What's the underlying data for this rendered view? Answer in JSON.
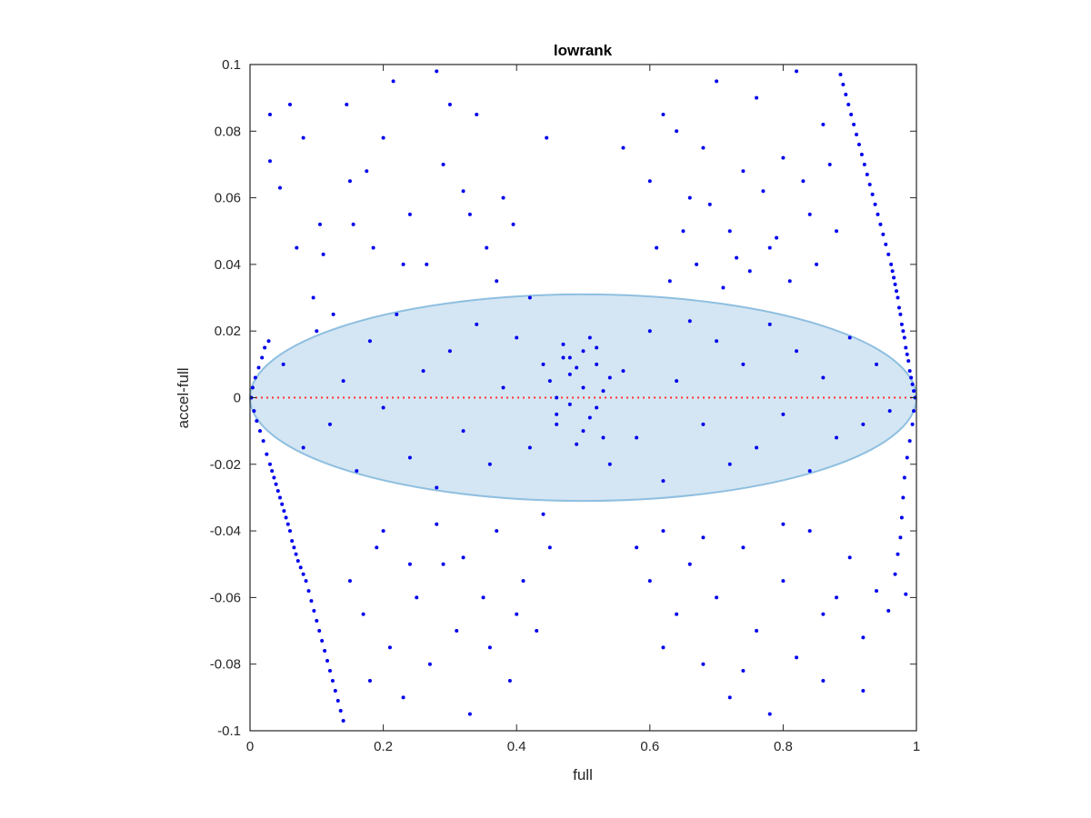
{
  "chart_data": {
    "type": "scatter",
    "title": "lowrank",
    "xlabel": "full",
    "ylabel": "accel-full",
    "xlim": [
      0,
      1
    ],
    "ylim": [
      -0.1,
      0.1
    ],
    "xticks": [
      0,
      0.2,
      0.4,
      0.6,
      0.8,
      1
    ],
    "xtick_labels": [
      "0",
      "0.2",
      "0.4",
      "0.6",
      "0.8",
      "1"
    ],
    "yticks": [
      -0.1,
      -0.08,
      -0.06,
      -0.04,
      -0.02,
      0,
      0.02,
      0.04,
      0.06,
      0.08,
      0.1
    ],
    "ytick_labels": [
      "-0.1",
      "-0.08",
      "-0.06",
      "-0.04",
      "-0.02",
      "0",
      "0.02",
      "0.04",
      "0.06",
      "0.08",
      "0.1"
    ],
    "grid": false,
    "ellipse": {
      "center": [
        0.5,
        0
      ],
      "x_semi_axis": 0.5,
      "y_semi_axis": 0.031,
      "fill_color": "#d4e6f3",
      "edge_color": "#8fbfe0"
    },
    "reference_line": {
      "y": 0,
      "style": "dotted",
      "color": "#ff3333"
    },
    "series": [
      {
        "marker_color": "#0000ee",
        "points": [
          [
            0.002,
            0.0
          ],
          [
            0.004,
            0.003
          ],
          [
            0.006,
            -0.004
          ],
          [
            0.008,
            0.006
          ],
          [
            0.01,
            -0.007
          ],
          [
            0.013,
            0.009
          ],
          [
            0.015,
            -0.01
          ],
          [
            0.018,
            0.012
          ],
          [
            0.02,
            -0.013
          ],
          [
            0.022,
            0.015
          ],
          [
            0.025,
            -0.017
          ],
          [
            0.028,
            0.017
          ],
          [
            0.03,
            -0.02
          ],
          [
            0.033,
            -0.022
          ],
          [
            0.036,
            -0.024
          ],
          [
            0.039,
            -0.026
          ],
          [
            0.042,
            -0.028
          ],
          [
            0.045,
            -0.03
          ],
          [
            0.048,
            -0.032
          ],
          [
            0.051,
            -0.034
          ],
          [
            0.054,
            -0.036
          ],
          [
            0.057,
            -0.038
          ],
          [
            0.06,
            -0.04
          ],
          [
            0.063,
            -0.043
          ],
          [
            0.066,
            -0.045
          ],
          [
            0.069,
            -0.047
          ],
          [
            0.072,
            -0.049
          ],
          [
            0.076,
            -0.051
          ],
          [
            0.08,
            -0.053
          ],
          [
            0.084,
            -0.055
          ],
          [
            0.088,
            -0.058
          ],
          [
            0.092,
            -0.061
          ],
          [
            0.096,
            -0.064
          ],
          [
            0.1,
            -0.067
          ],
          [
            0.104,
            -0.07
          ],
          [
            0.108,
            -0.073
          ],
          [
            0.112,
            -0.076
          ],
          [
            0.116,
            -0.079
          ],
          [
            0.12,
            -0.082
          ],
          [
            0.124,
            -0.085
          ],
          [
            0.128,
            -0.088
          ],
          [
            0.132,
            -0.091
          ],
          [
            0.136,
            -0.094
          ],
          [
            0.14,
            -0.097
          ],
          [
            0.998,
            0.0
          ],
          [
            0.996,
            0.002
          ],
          [
            0.994,
            0.004
          ],
          [
            0.992,
            0.006
          ],
          [
            0.99,
            0.008
          ],
          [
            0.988,
            0.011
          ],
          [
            0.986,
            0.013
          ],
          [
            0.984,
            0.015
          ],
          [
            0.982,
            0.018
          ],
          [
            0.98,
            0.02
          ],
          [
            0.978,
            0.022
          ],
          [
            0.976,
            0.025
          ],
          [
            0.974,
            0.027
          ],
          [
            0.972,
            0.03
          ],
          [
            0.97,
            0.032
          ],
          [
            0.968,
            0.034
          ],
          [
            0.966,
            0.036
          ],
          [
            0.964,
            0.038
          ],
          [
            0.962,
            0.04
          ],
          [
            0.958,
            0.043
          ],
          [
            0.954,
            0.046
          ],
          [
            0.95,
            0.049
          ],
          [
            0.946,
            0.052
          ],
          [
            0.942,
            0.055
          ],
          [
            0.938,
            0.058
          ],
          [
            0.934,
            0.061
          ],
          [
            0.93,
            0.064
          ],
          [
            0.926,
            0.067
          ],
          [
            0.922,
            0.07
          ],
          [
            0.918,
            0.073
          ],
          [
            0.914,
            0.076
          ],
          [
            0.91,
            0.079
          ],
          [
            0.906,
            0.082
          ],
          [
            0.902,
            0.085
          ],
          [
            0.898,
            0.088
          ],
          [
            0.894,
            0.091
          ],
          [
            0.89,
            0.094
          ],
          [
            0.886,
            0.097
          ],
          [
            0.996,
            -0.004
          ],
          [
            0.994,
            -0.008
          ],
          [
            0.99,
            -0.013
          ],
          [
            0.986,
            -0.018
          ],
          [
            0.982,
            -0.024
          ],
          [
            0.98,
            -0.03
          ],
          [
            0.978,
            -0.036
          ],
          [
            0.976,
            -0.042
          ],
          [
            0.972,
            -0.047
          ],
          [
            0.968,
            -0.053
          ],
          [
            0.984,
            -0.059
          ],
          [
            0.958,
            -0.064
          ],
          [
            0.03,
            0.085
          ],
          [
            0.045,
            0.063
          ],
          [
            0.06,
            0.088
          ],
          [
            0.08,
            0.078
          ],
          [
            0.105,
            0.052
          ],
          [
            0.11,
            0.043
          ],
          [
            0.125,
            0.025
          ],
          [
            0.145,
            0.088
          ],
          [
            0.155,
            0.052
          ],
          [
            0.175,
            0.068
          ],
          [
            0.185,
            0.045
          ],
          [
            0.2,
            0.078
          ],
          [
            0.215,
            0.095
          ],
          [
            0.24,
            0.055
          ],
          [
            0.265,
            0.04
          ],
          [
            0.28,
            0.098
          ],
          [
            0.3,
            0.088
          ],
          [
            0.32,
            0.062
          ],
          [
            0.34,
            0.085
          ],
          [
            0.355,
            0.045
          ],
          [
            0.38,
            0.06
          ],
          [
            0.395,
            0.052
          ],
          [
            0.42,
            0.03
          ],
          [
            0.445,
            0.078
          ],
          [
            0.03,
            0.071
          ],
          [
            0.07,
            0.045
          ],
          [
            0.095,
            0.03
          ],
          [
            0.15,
            0.065
          ],
          [
            0.23,
            0.04
          ],
          [
            0.29,
            0.07
          ],
          [
            0.33,
            0.055
          ],
          [
            0.37,
            0.035
          ],
          [
            0.6,
            0.065
          ],
          [
            0.62,
            0.085
          ],
          [
            0.64,
            0.08
          ],
          [
            0.66,
            0.06
          ],
          [
            0.68,
            0.075
          ],
          [
            0.7,
            0.095
          ],
          [
            0.72,
            0.05
          ],
          [
            0.74,
            0.068
          ],
          [
            0.76,
            0.09
          ],
          [
            0.78,
            0.045
          ],
          [
            0.8,
            0.072
          ],
          [
            0.82,
            0.098
          ],
          [
            0.84,
            0.055
          ],
          [
            0.86,
            0.082
          ],
          [
            0.61,
            0.045
          ],
          [
            0.63,
            0.035
          ],
          [
            0.65,
            0.05
          ],
          [
            0.67,
            0.04
          ],
          [
            0.69,
            0.058
          ],
          [
            0.71,
            0.033
          ],
          [
            0.73,
            0.042
          ],
          [
            0.75,
            0.038
          ],
          [
            0.77,
            0.062
          ],
          [
            0.79,
            0.048
          ],
          [
            0.81,
            0.035
          ],
          [
            0.83,
            0.065
          ],
          [
            0.85,
            0.04
          ],
          [
            0.87,
            0.07
          ],
          [
            0.88,
            0.05
          ],
          [
            0.56,
            0.075
          ],
          [
            0.15,
            -0.055
          ],
          [
            0.17,
            -0.065
          ],
          [
            0.19,
            -0.045
          ],
          [
            0.21,
            -0.075
          ],
          [
            0.23,
            -0.09
          ],
          [
            0.25,
            -0.06
          ],
          [
            0.27,
            -0.08
          ],
          [
            0.29,
            -0.05
          ],
          [
            0.31,
            -0.07
          ],
          [
            0.33,
            -0.095
          ],
          [
            0.35,
            -0.06
          ],
          [
            0.37,
            -0.04
          ],
          [
            0.39,
            -0.085
          ],
          [
            0.41,
            -0.055
          ],
          [
            0.43,
            -0.07
          ],
          [
            0.45,
            -0.045
          ],
          [
            0.18,
            -0.085
          ],
          [
            0.2,
            -0.04
          ],
          [
            0.24,
            -0.05
          ],
          [
            0.28,
            -0.038
          ],
          [
            0.32,
            -0.048
          ],
          [
            0.36,
            -0.075
          ],
          [
            0.4,
            -0.065
          ],
          [
            0.44,
            -0.035
          ],
          [
            0.58,
            -0.045
          ],
          [
            0.6,
            -0.055
          ],
          [
            0.62,
            -0.04
          ],
          [
            0.64,
            -0.065
          ],
          [
            0.66,
            -0.05
          ],
          [
            0.68,
            -0.08
          ],
          [
            0.7,
            -0.06
          ],
          [
            0.72,
            -0.09
          ],
          [
            0.74,
            -0.045
          ],
          [
            0.76,
            -0.07
          ],
          [
            0.78,
            -0.095
          ],
          [
            0.8,
            -0.055
          ],
          [
            0.82,
            -0.078
          ],
          [
            0.84,
            -0.04
          ],
          [
            0.86,
            -0.085
          ],
          [
            0.88,
            -0.06
          ],
          [
            0.9,
            -0.048
          ],
          [
            0.92,
            -0.072
          ],
          [
            0.94,
            -0.058
          ],
          [
            0.62,
            -0.075
          ],
          [
            0.68,
            -0.042
          ],
          [
            0.74,
            -0.082
          ],
          [
            0.8,
            -0.038
          ],
          [
            0.86,
            -0.065
          ],
          [
            0.92,
            -0.088
          ],
          [
            0.05,
            0.01
          ],
          [
            0.08,
            -0.015
          ],
          [
            0.1,
            0.02
          ],
          [
            0.12,
            -0.008
          ],
          [
            0.14,
            0.005
          ],
          [
            0.16,
            -0.022
          ],
          [
            0.18,
            0.017
          ],
          [
            0.2,
            -0.003
          ],
          [
            0.22,
            0.025
          ],
          [
            0.24,
            -0.018
          ],
          [
            0.26,
            0.008
          ],
          [
            0.28,
            -0.027
          ],
          [
            0.3,
            0.014
          ],
          [
            0.32,
            -0.01
          ],
          [
            0.34,
            0.022
          ],
          [
            0.36,
            -0.02
          ],
          [
            0.38,
            0.003
          ],
          [
            0.4,
            0.018
          ],
          [
            0.42,
            -0.015
          ],
          [
            0.44,
            0.01
          ],
          [
            0.46,
            -0.005
          ],
          [
            0.48,
            0.012
          ],
          [
            0.5,
            -0.01
          ],
          [
            0.52,
            0.015
          ],
          [
            0.54,
            -0.02
          ],
          [
            0.56,
            0.008
          ],
          [
            0.58,
            -0.012
          ],
          [
            0.6,
            0.02
          ],
          [
            0.62,
            -0.025
          ],
          [
            0.64,
            0.005
          ],
          [
            0.66,
            0.023
          ],
          [
            0.68,
            -0.008
          ],
          [
            0.7,
            0.017
          ],
          [
            0.72,
            -0.02
          ],
          [
            0.74,
            0.01
          ],
          [
            0.76,
            -0.015
          ],
          [
            0.78,
            0.022
          ],
          [
            0.8,
            -0.005
          ],
          [
            0.82,
            0.014
          ],
          [
            0.84,
            -0.022
          ],
          [
            0.86,
            0.006
          ],
          [
            0.88,
            -0.012
          ],
          [
            0.9,
            0.018
          ],
          [
            0.92,
            -0.008
          ],
          [
            0.94,
            0.01
          ],
          [
            0.96,
            -0.004
          ],
          [
            0.45,
            0.005
          ],
          [
            0.46,
            -0.008
          ],
          [
            0.47,
            0.012
          ],
          [
            0.48,
            -0.002
          ],
          [
            0.49,
            0.009
          ],
          [
            0.5,
            0.003
          ],
          [
            0.51,
            -0.006
          ],
          [
            0.52,
            0.01
          ],
          [
            0.53,
            -0.012
          ],
          [
            0.54,
            0.006
          ],
          [
            0.47,
            0.016
          ],
          [
            0.49,
            -0.014
          ],
          [
            0.51,
            0.018
          ],
          [
            0.53,
            0.002
          ],
          [
            0.46,
            0.0
          ],
          [
            0.5,
            0.014
          ],
          [
            0.48,
            0.007
          ],
          [
            0.52,
            -0.003
          ]
        ]
      }
    ]
  }
}
